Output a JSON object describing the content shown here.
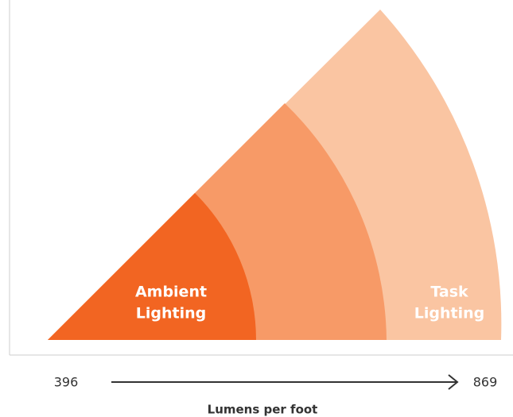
{
  "zones": [
    {
      "label": [
        "Ambient",
        "Lighting"
      ]
    },
    {
      "label": [
        "Task",
        "Lighting"
      ]
    }
  ],
  "scale": {
    "start": "396",
    "end": "869",
    "label": "Lumens per foot"
  }
}
